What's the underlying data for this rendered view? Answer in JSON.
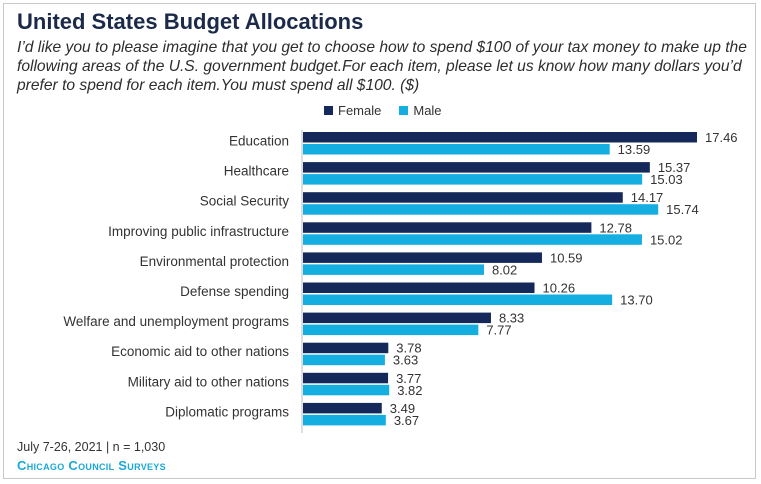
{
  "header": {
    "title": "United States Budget Allocations",
    "subtitle": "I’d like you to please imagine that you get to choose how to spend $100 of your tax money to make up the following areas of the U.S. government budget.For each item, please let us know how many dollars you’d prefer to spend for each item.You must spend all $100. ($)"
  },
  "footer": {
    "note": "July 7-26, 2021 | n = 1,030",
    "brand": "Chicago Council Surveys"
  },
  "colors": {
    "female": "#14285a",
    "male": "#15aee0",
    "title": "#1c2a4a",
    "brand": "#1aa8d8"
  },
  "chart_data": {
    "type": "bar",
    "orientation": "horizontal",
    "title": "United States Budget Allocations",
    "legend_position": "top",
    "grid": false,
    "xlim": [
      0,
      20
    ],
    "categories": [
      "Education",
      "Healthcare",
      "Social Security",
      "Improving public infrastructure",
      "Environmental protection",
      "Defense spending",
      "Welfare and unemployment programs",
      "Economic aid to other nations",
      "Military aid to other nations",
      "Diplomatic programs"
    ],
    "series": [
      {
        "name": "Female",
        "values": [
          17.46,
          15.37,
          14.17,
          12.78,
          10.59,
          10.26,
          8.33,
          3.78,
          3.77,
          3.49
        ]
      },
      {
        "name": "Male",
        "values": [
          13.59,
          15.03,
          15.74,
          15.02,
          8.02,
          13.7,
          7.77,
          3.63,
          3.82,
          3.67
        ]
      }
    ]
  }
}
